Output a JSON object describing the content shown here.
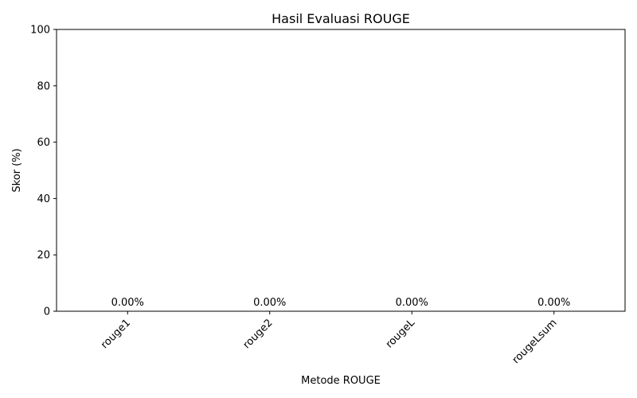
{
  "chart_data": {
    "type": "bar",
    "title": "Hasil Evaluasi ROUGE",
    "xlabel": "Metode ROUGE",
    "ylabel": "Skor (%)",
    "categories": [
      "rouge1",
      "rouge2",
      "rougeL",
      "rougeLsum"
    ],
    "values": [
      0,
      0,
      0,
      0
    ],
    "value_labels": [
      "0.00%",
      "0.00%",
      "0.00%",
      "0.00%"
    ],
    "ylim": [
      0,
      100
    ],
    "yticks": [
      0,
      20,
      40,
      60,
      80,
      100
    ],
    "grid": false,
    "legend": "none",
    "bar_color": "#1f77b4"
  }
}
